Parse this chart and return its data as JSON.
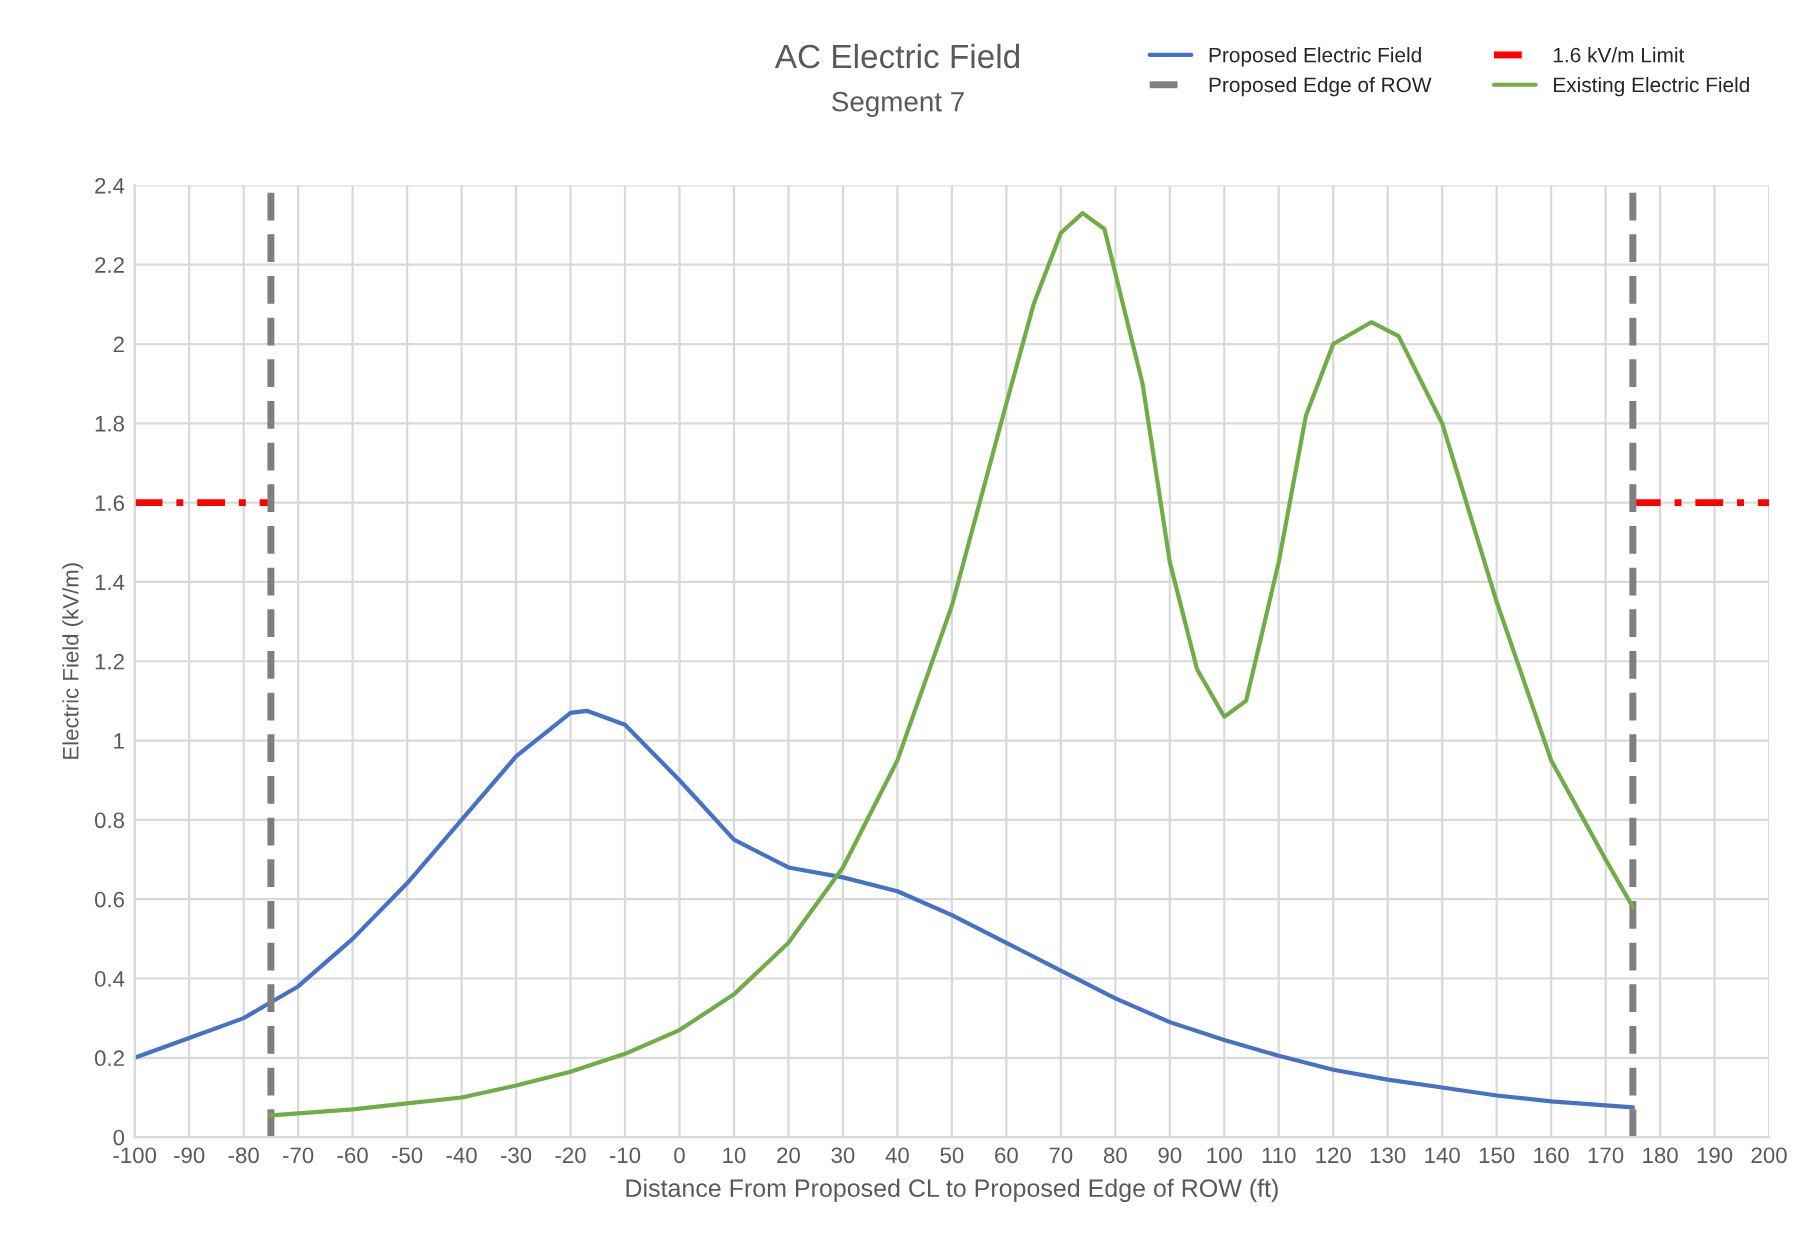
{
  "chart_data": {
    "type": "line",
    "title": "AC Electric Field",
    "subtitle": "Segment 7",
    "xlabel": "Distance From Proposed CL to Proposed Edge of ROW (ft)",
    "ylabel": "Electric Field (kV/m)",
    "xlim": [
      -100,
      200
    ],
    "xticks": [
      -100,
      -90,
      -80,
      -70,
      -60,
      -50,
      -40,
      -30,
      -20,
      -10,
      0,
      10,
      20,
      30,
      40,
      50,
      60,
      70,
      80,
      90,
      100,
      110,
      120,
      130,
      140,
      150,
      160,
      170,
      180,
      190,
      200
    ],
    "ylim": [
      0,
      2.4
    ],
    "yticks": [
      0,
      0.2,
      0.4,
      0.6,
      0.8,
      1,
      1.2,
      1.4,
      1.6,
      1.8,
      2,
      2.2,
      2.4
    ],
    "grid": true,
    "legend": "top right",
    "series": [
      {
        "name": "Proposed Electric Field",
        "color": "#4472c4",
        "line_style": "solid",
        "x": [
          -100,
          -90,
          -80,
          -75,
          -70,
          -60,
          -50,
          -40,
          -30,
          -20,
          -17,
          -10,
          0,
          10,
          20,
          30,
          40,
          50,
          60,
          70,
          80,
          90,
          100,
          110,
          120,
          130,
          140,
          150,
          160,
          175
        ],
        "values": [
          0.2,
          0.25,
          0.3,
          0.34,
          0.38,
          0.5,
          0.64,
          0.8,
          0.96,
          1.07,
          1.075,
          1.04,
          0.9,
          0.75,
          0.68,
          0.655,
          0.62,
          0.56,
          0.49,
          0.42,
          0.35,
          0.29,
          0.245,
          0.205,
          0.17,
          0.145,
          0.125,
          0.105,
          0.09,
          0.075
        ]
      },
      {
        "name": "1.6 kV/m Limit",
        "color": "#ff0000",
        "line_style": "dashdot",
        "x": [
          -100,
          -75,
          -74,
          175,
          200
        ],
        "values": [
          1.6,
          1.6,
          null,
          1.6,
          1.6
        ]
      },
      {
        "name": "Proposed Edge of ROW",
        "color": "#7f7f7f",
        "line_style": "dashed",
        "x": [
          -75,
          -75,
          -74,
          175,
          175
        ],
        "values": [
          0,
          2.4,
          null,
          0,
          2.4
        ]
      },
      {
        "name": "Existing Electric Field",
        "color": "#70ad47",
        "line_style": "solid",
        "x": [
          -75,
          -60,
          -50,
          -40,
          -30,
          -20,
          -10,
          0,
          10,
          20,
          30,
          40,
          50,
          60,
          65,
          70,
          74,
          78,
          85,
          90,
          95,
          100,
          104,
          110,
          115,
          120,
          127,
          132,
          140,
          150,
          160,
          170,
          175
        ],
        "values": [
          0.055,
          0.07,
          0.085,
          0.1,
          0.13,
          0.165,
          0.21,
          0.27,
          0.36,
          0.49,
          0.68,
          0.95,
          1.34,
          1.85,
          2.1,
          2.28,
          2.33,
          2.29,
          1.9,
          1.45,
          1.18,
          1.06,
          1.1,
          1.45,
          1.82,
          2.0,
          2.055,
          2.02,
          1.8,
          1.35,
          0.95,
          0.7,
          0.58
        ]
      }
    ]
  }
}
